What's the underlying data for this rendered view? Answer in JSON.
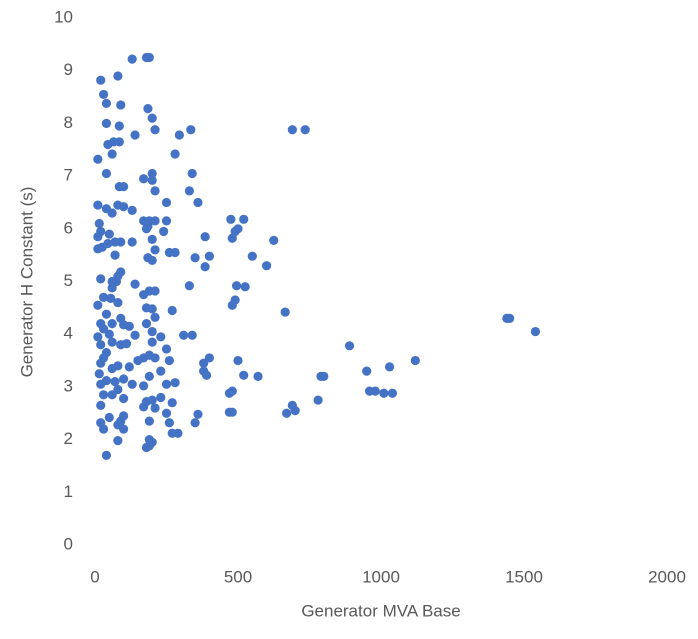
{
  "chart_data": {
    "type": "scatter",
    "x_label": "Generator MVA Base",
    "y_label": "Generator H Constant (s)",
    "color": "#4472c4",
    "grid": false,
    "xlim": [
      0,
      2000
    ],
    "xticks": [
      0,
      500,
      1000,
      1500,
      2000
    ],
    "ylim": [
      0,
      10
    ],
    "yticks": [
      0,
      1,
      2,
      3,
      4,
      5,
      6,
      7,
      8,
      9,
      10
    ],
    "x": [
      130,
      180,
      190,
      20,
      80,
      30,
      40,
      90,
      185,
      200,
      40,
      85,
      210,
      335,
      295,
      140,
      690,
      735,
      65,
      85,
      45,
      60,
      280,
      10,
      200,
      340,
      40,
      170,
      200,
      85,
      100,
      210,
      330,
      360,
      250,
      10,
      80,
      100,
      40,
      130,
      60,
      475,
      520,
      170,
      190,
      210,
      250,
      15,
      185,
      180,
      240,
      500,
      490,
      20,
      50,
      385,
      480,
      10,
      130,
      200,
      625,
      70,
      90,
      45,
      25,
      10,
      210,
      260,
      280,
      550,
      400,
      350,
      185,
      200,
      70,
      600,
      385,
      90,
      80,
      20,
      60,
      75,
      140,
      330,
      495,
      525,
      60,
      190,
      210,
      170,
      30,
      55,
      490,
      480,
      10,
      80,
      180,
      200,
      270,
      665,
      40,
      90,
      210,
      1440,
      1450,
      20,
      60,
      100,
      180,
      120,
      30,
      1540,
      200,
      50,
      140,
      310,
      340,
      230,
      10,
      60,
      90,
      110,
      200,
      20,
      890,
      250,
      40,
      190,
      170,
      210,
      400,
      30,
      150,
      1120,
      500,
      380,
      260,
      20,
      80,
      120,
      60,
      1030,
      230,
      380,
      950,
      390,
      520,
      570,
      790,
      800,
      190,
      15,
      100,
      40,
      70,
      280,
      250,
      130,
      170,
      20,
      80,
      480,
      960,
      980,
      1010,
      1040,
      470,
      60,
      30,
      230,
      100,
      780,
      180,
      200,
      270,
      690,
      20,
      170,
      210,
      700,
      470,
      480,
      670,
      250,
      360,
      100,
      50,
      190,
      90,
      20,
      260,
      350,
      80,
      100,
      30,
      270,
      290,
      190,
      200,
      80,
      180,
      190,
      40
    ],
    "values": [
      9.22,
      9.25,
      9.25,
      8.82,
      8.9,
      8.55,
      8.38,
      8.35,
      8.28,
      8.1,
      8.0,
      7.95,
      7.88,
      7.88,
      7.78,
      7.78,
      7.88,
      7.88,
      7.65,
      7.65,
      7.6,
      7.42,
      7.42,
      7.32,
      7.05,
      7.05,
      7.05,
      6.95,
      6.92,
      6.8,
      6.8,
      6.72,
      6.72,
      6.5,
      6.5,
      6.45,
      6.45,
      6.42,
      6.38,
      6.35,
      6.3,
      6.18,
      6.18,
      6.15,
      6.15,
      6.15,
      6.15,
      6.1,
      6.05,
      6.0,
      5.95,
      6.0,
      5.95,
      5.95,
      5.9,
      5.85,
      5.82,
      5.85,
      5.75,
      5.8,
      5.78,
      5.75,
      5.75,
      5.72,
      5.65,
      5.62,
      5.6,
      5.55,
      5.55,
      5.48,
      5.48,
      5.45,
      5.45,
      5.4,
      5.5,
      5.3,
      5.28,
      5.18,
      5.1,
      5.05,
      5.0,
      5.0,
      4.95,
      4.92,
      4.92,
      4.9,
      4.88,
      4.82,
      4.82,
      4.75,
      4.7,
      4.68,
      4.65,
      4.55,
      4.55,
      4.6,
      4.5,
      4.48,
      4.45,
      4.42,
      4.38,
      4.3,
      4.32,
      4.3,
      4.3,
      4.2,
      4.2,
      4.18,
      4.2,
      4.15,
      4.1,
      4.05,
      4.05,
      4.0,
      3.98,
      3.98,
      3.98,
      3.95,
      3.95,
      3.85,
      3.8,
      3.82,
      3.85,
      3.8,
      3.78,
      3.72,
      3.65,
      3.6,
      3.55,
      3.55,
      3.55,
      3.55,
      3.5,
      3.5,
      3.5,
      3.45,
      3.5,
      3.45,
      3.4,
      3.38,
      3.35,
      3.38,
      3.3,
      3.3,
      3.3,
      3.22,
      3.22,
      3.2,
      3.2,
      3.2,
      3.2,
      3.25,
      3.15,
      3.12,
      3.1,
      3.08,
      3.05,
      3.05,
      3.02,
      3.05,
      2.95,
      2.92,
      2.92,
      2.92,
      2.88,
      2.88,
      2.88,
      2.85,
      2.85,
      2.8,
      2.78,
      2.75,
      2.72,
      2.75,
      2.7,
      2.65,
      2.65,
      2.62,
      2.6,
      2.55,
      2.52,
      2.52,
      2.5,
      2.5,
      2.48,
      2.45,
      2.42,
      2.35,
      2.35,
      2.32,
      2.32,
      2.32,
      2.28,
      2.2,
      2.2,
      2.12,
      2.12,
      2.0,
      1.95,
      1.98,
      1.85,
      1.88,
      1.7
    ]
  }
}
